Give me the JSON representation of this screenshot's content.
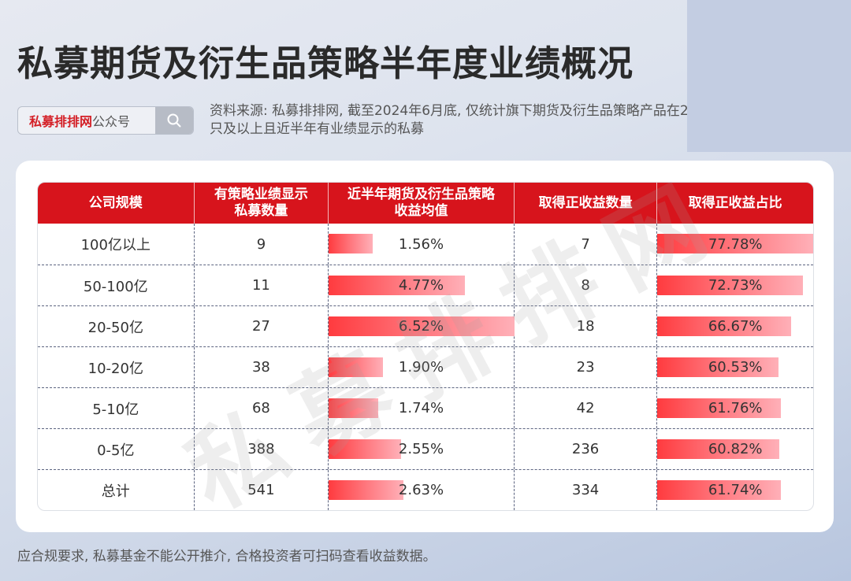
{
  "header": {
    "title": "私募期货及衍生品策略半年度业绩概况",
    "search_brand": "私募排排网",
    "search_suffix": "公众号",
    "search_icon": "search-icon",
    "source_note": "资料来源: 私募排排网, 截至2024年6月底, 仅统计旗下期货及衍生品策略产品在2只及以上且近半年有业绩显示的私募"
  },
  "table": {
    "columns": [
      "公司规模",
      "有策略业绩显示\n私募数量",
      "近半年期货及衍生品策略\n收益均值",
      "取得正收益数量",
      "取得正收益占比"
    ],
    "rows": [
      {
        "scale": "100亿以上",
        "count": "9",
        "avg_return": "1.56%",
        "pos_count": "7",
        "pos_ratio": "77.78%"
      },
      {
        "scale": "50-100亿",
        "count": "11",
        "avg_return": "4.77%",
        "pos_count": "8",
        "pos_ratio": "72.73%"
      },
      {
        "scale": "20-50亿",
        "count": "27",
        "avg_return": "6.52%",
        "pos_count": "18",
        "pos_ratio": "66.67%"
      },
      {
        "scale": "10-20亿",
        "count": "38",
        "avg_return": "1.90%",
        "pos_count": "23",
        "pos_ratio": "60.53%"
      },
      {
        "scale": "5-10亿",
        "count": "68",
        "avg_return": "1.74%",
        "pos_count": "42",
        "pos_ratio": "61.76%"
      },
      {
        "scale": "0-5亿",
        "count": "388",
        "avg_return": "2.55%",
        "pos_count": "236",
        "pos_ratio": "60.82%"
      },
      {
        "scale": "总计",
        "count": "541",
        "avg_return": "2.63%",
        "pos_count": "334",
        "pos_ratio": "61.74%"
      }
    ]
  },
  "watermark": "私募排排网",
  "footer": "应合规要求, 私募基金不能公开推介, 合格投资者可扫码查看收益数据。",
  "colors": {
    "header_red": "#d7141c",
    "bar_start": "#ff3b3f",
    "bar_end": "#ffb0b8",
    "brand_red": "#d41f26"
  },
  "chart_data": {
    "type": "table",
    "title": "私募期货及衍生品策略半年度业绩概况",
    "categories": [
      "100亿以上",
      "50-100亿",
      "20-50亿",
      "10-20亿",
      "5-10亿",
      "0-5亿",
      "总计"
    ],
    "series": [
      {
        "name": "有策略业绩显示私募数量",
        "values": [
          9,
          11,
          27,
          38,
          68,
          388,
          541
        ]
      },
      {
        "name": "近半年期货及衍生品策略收益均值(%)",
        "values": [
          1.56,
          4.77,
          6.52,
          1.9,
          1.74,
          2.55,
          2.63
        ]
      },
      {
        "name": "取得正收益数量",
        "values": [
          7,
          8,
          18,
          23,
          42,
          236,
          334
        ]
      },
      {
        "name": "取得正收益占比(%)",
        "values": [
          77.78,
          72.73,
          66.67,
          60.53,
          61.76,
          60.82,
          61.74
        ]
      }
    ],
    "databars": {
      "avg_return_max": 6.52,
      "pos_ratio_max": 77.78
    }
  }
}
